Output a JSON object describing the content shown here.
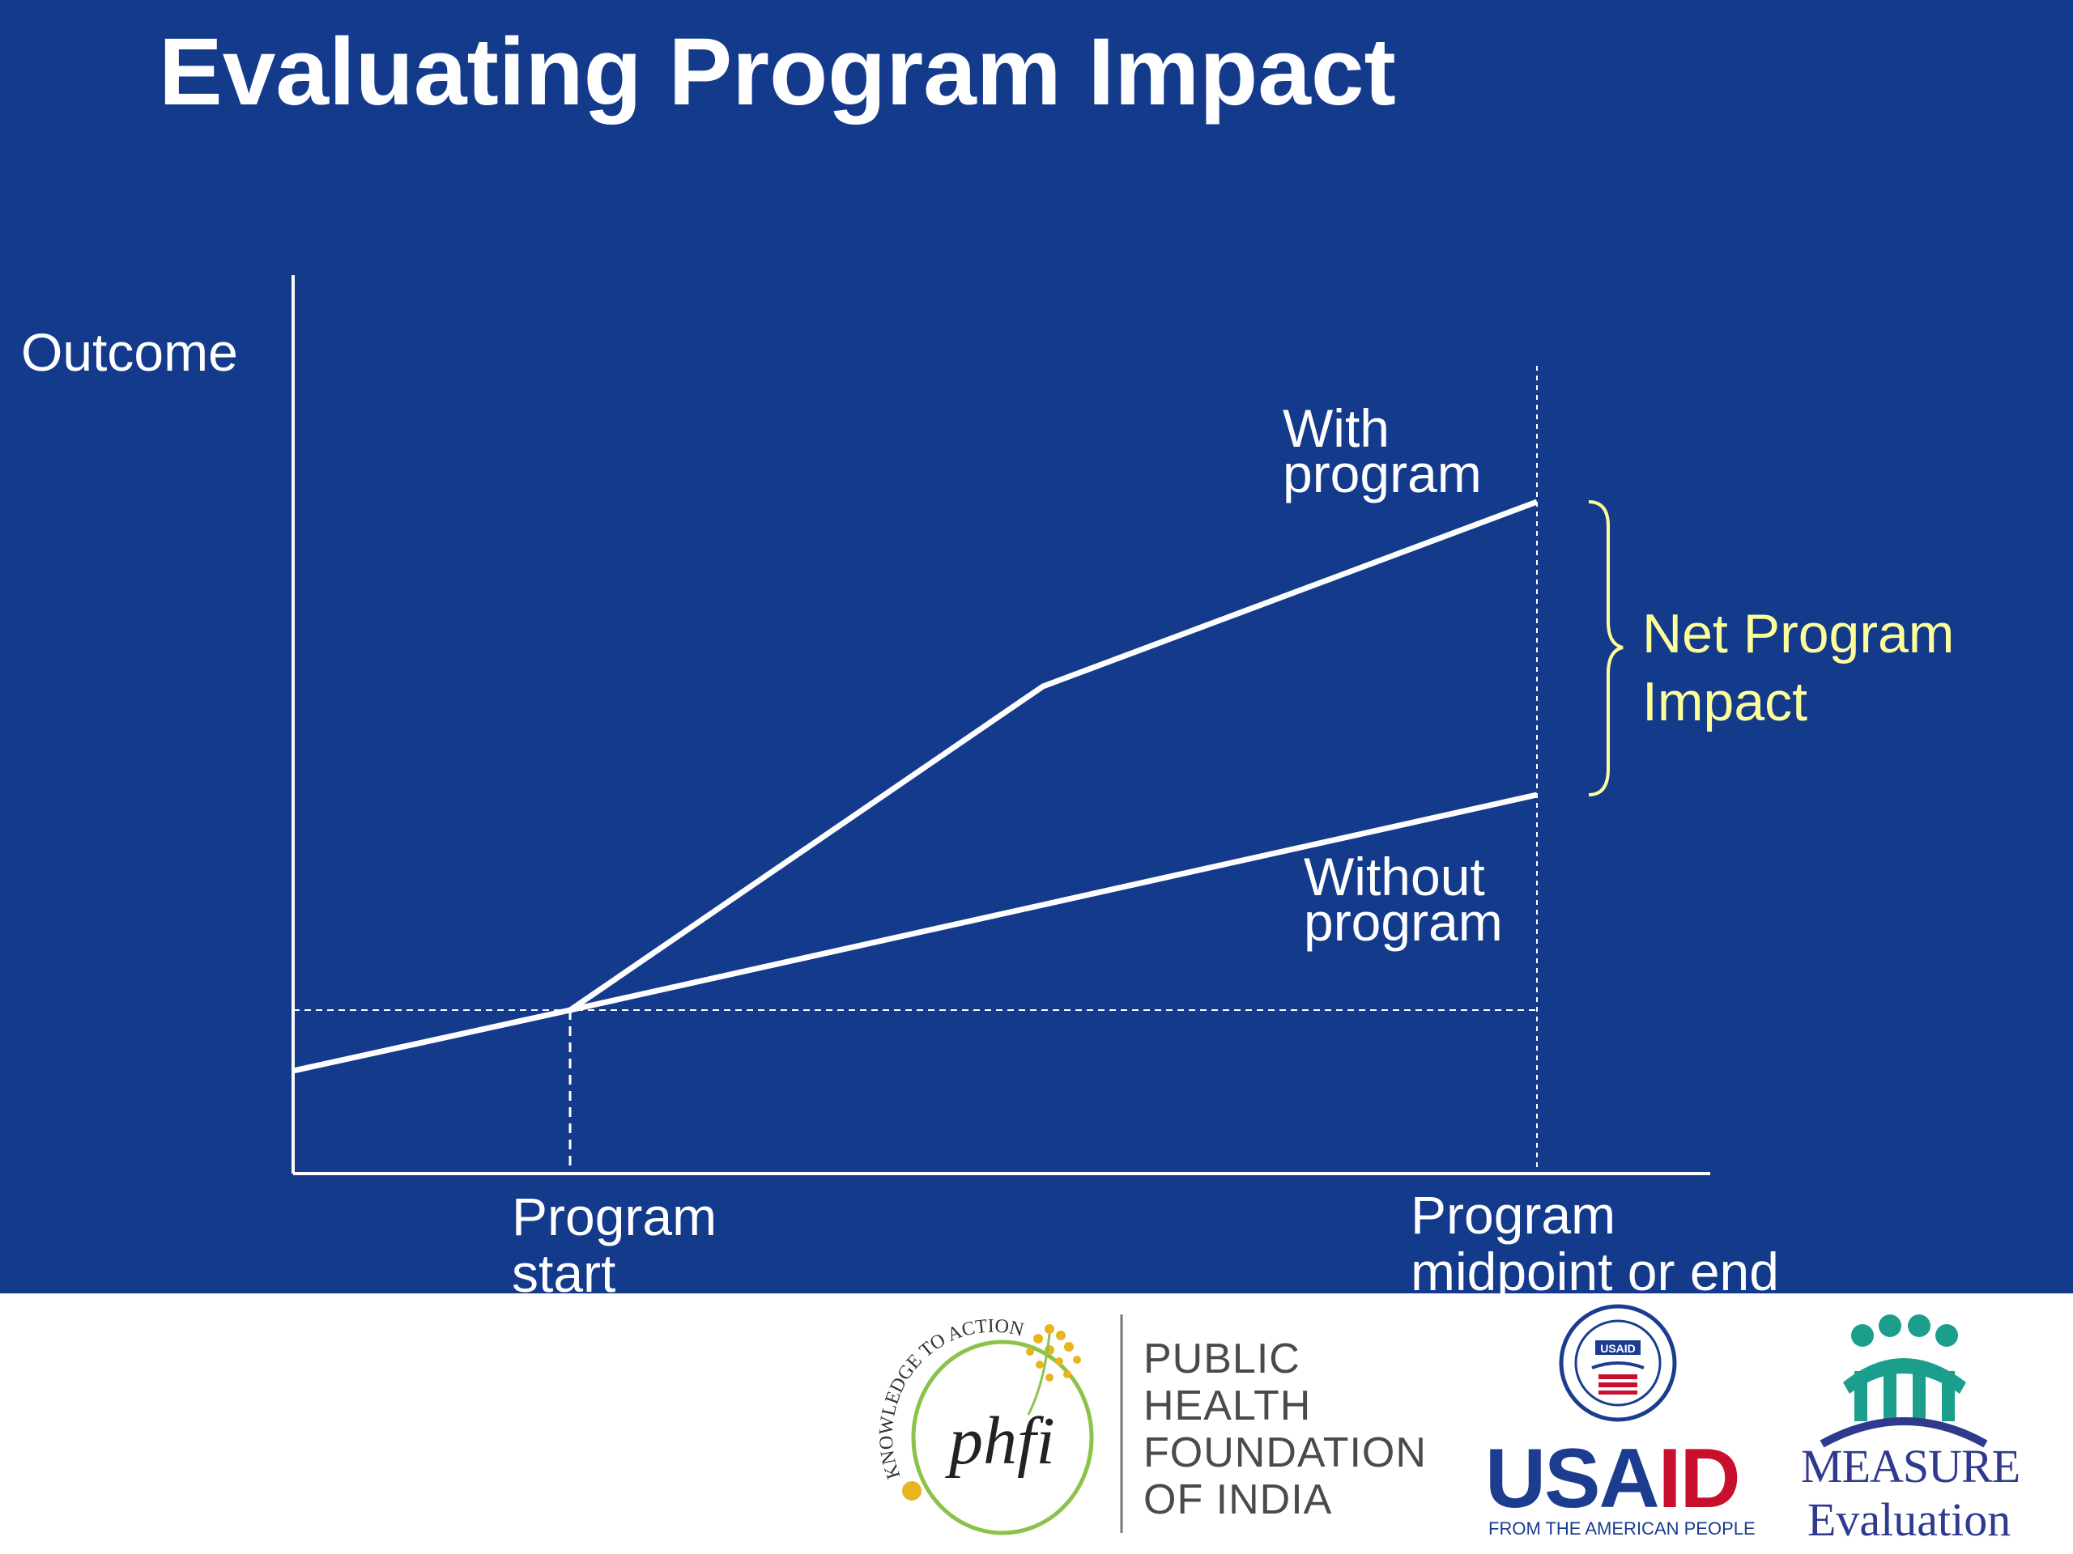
{
  "title": "Evaluating Program Impact",
  "diagram": {
    "y_axis_label": "Outcome",
    "x_labels": {
      "start": [
        "Program",
        "start"
      ],
      "end": [
        "Program",
        "midpoint or end"
      ]
    },
    "line_labels": {
      "with_program": [
        "With",
        "program"
      ],
      "without_program": [
        "Without",
        "program"
      ]
    },
    "brace_label": [
      "Net Program",
      "Impact"
    ],
    "colors": {
      "background": "#143a8c",
      "lines": "#ffffff",
      "brace": "#ffff99"
    }
  },
  "footer": {
    "phfi": {
      "arc_text": "KNOWLEDGE TO ACTION",
      "monogram": "phfi",
      "name_lines": [
        "PUBLIC",
        "HEALTH",
        "FOUNDATION",
        "OF INDIA"
      ]
    },
    "usaid": {
      "seal_text": "USAID",
      "word_part1": "USA",
      "word_part2": "ID",
      "tagline": "FROM THE AMERICAN PEOPLE"
    },
    "measure": {
      "word": "MEASURE",
      "sub": "Evaluation"
    }
  }
}
